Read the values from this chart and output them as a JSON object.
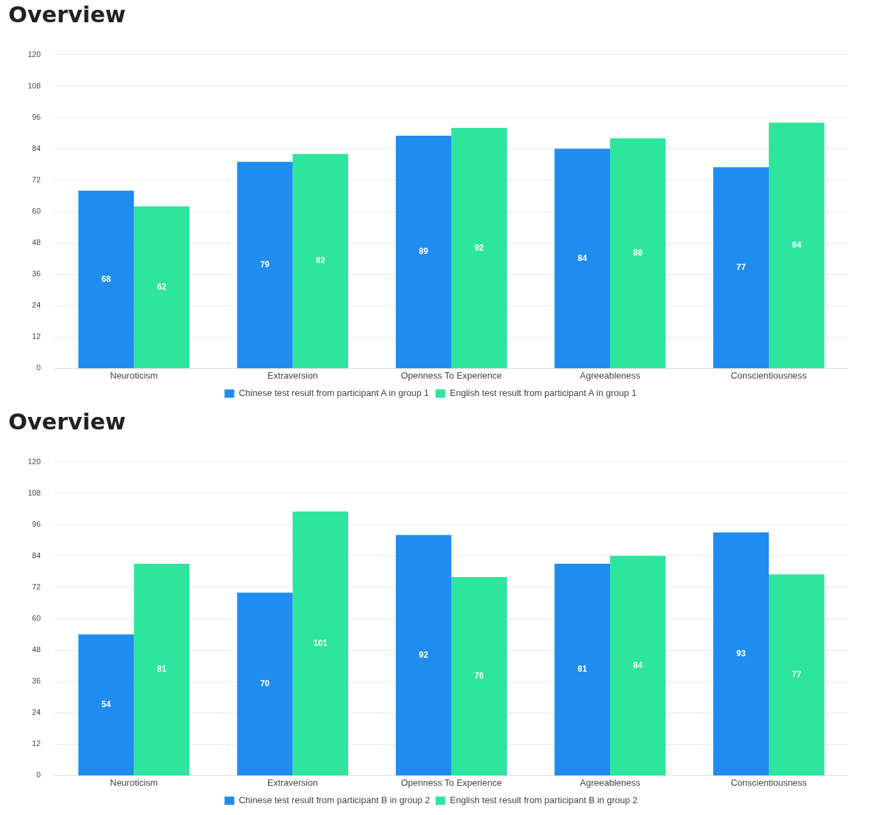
{
  "chart_data": [
    {
      "type": "bar",
      "title": "Overview",
      "categories": [
        "Neuroticism",
        "Extraversion",
        "Openness To Experience",
        "Agreeableness",
        "Conscientiousness"
      ],
      "series": [
        {
          "name": "Chinese test result from participant A in group 1",
          "color": "#1f8cf0",
          "values": [
            68,
            79,
            89,
            84,
            77
          ]
        },
        {
          "name": "English test result from participant A in group 1",
          "color": "#2ee59d",
          "values": [
            62,
            82,
            92,
            88,
            94
          ]
        }
      ],
      "ylim": [
        0,
        120
      ],
      "yticks": [
        0,
        12,
        24,
        36,
        48,
        60,
        72,
        84,
        96,
        108,
        120
      ],
      "grid": "y",
      "legend": "bottom",
      "data_labels": true
    },
    {
      "type": "bar",
      "title": "Overview",
      "categories": [
        "Neuroticism",
        "Extraversion",
        "Openness To Experience",
        "Agreeableness",
        "Conscientiousness"
      ],
      "series": [
        {
          "name": "Chinese test result from participant B in group 2",
          "color": "#1f8cf0",
          "values": [
            54,
            70,
            92,
            81,
            93
          ]
        },
        {
          "name": "English test result from participant B in group 2",
          "color": "#2ee59d",
          "values": [
            81,
            101,
            76,
            84,
            77
          ]
        }
      ],
      "ylim": [
        0,
        120
      ],
      "yticks": [
        0,
        12,
        24,
        36,
        48,
        60,
        72,
        84,
        96,
        108,
        120
      ],
      "grid": "y",
      "legend": "bottom",
      "data_labels": true
    }
  ]
}
